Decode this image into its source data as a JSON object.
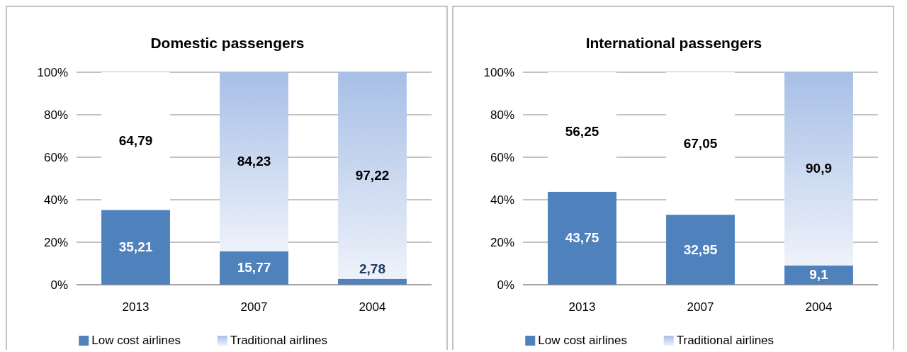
{
  "chart_data": [
    {
      "type": "bar",
      "stacked": true,
      "title": "Domestic passengers",
      "categories": [
        "2013",
        "2007",
        "2004"
      ],
      "series": [
        {
          "name": "Low cost airlines",
          "color": "#4f81bd",
          "values": [
            35.21,
            15.77,
            2.78
          ],
          "value_labels": [
            "35,21",
            "15,77",
            "2,78"
          ]
        },
        {
          "name": "Traditional airlines",
          "color": "#a7bfe6",
          "colors": [
            "#ffffff",
            "#a7bfe6",
            "#a7bfe6"
          ],
          "values": [
            64.79,
            84.23,
            97.22
          ],
          "value_labels": [
            "64,79",
            "84,23",
            "97,22"
          ]
        }
      ],
      "ylim": [
        0,
        100
      ],
      "yticks": [
        {
          "value": 0,
          "label": "0%"
        },
        {
          "value": 20,
          "label": "20%"
        },
        {
          "value": 40,
          "label": "40%"
        },
        {
          "value": 60,
          "label": "60%"
        },
        {
          "value": 80,
          "label": "80%"
        },
        {
          "value": 100,
          "label": "100%"
        }
      ],
      "grid": "y",
      "legend": "bottom"
    },
    {
      "type": "bar",
      "stacked": true,
      "title": "International passengers",
      "categories": [
        "2013",
        "2007",
        "2004"
      ],
      "series": [
        {
          "name": "Low cost airlines",
          "color": "#4f81bd",
          "values": [
            43.75,
            32.95,
            9.1
          ],
          "value_labels": [
            "43,75",
            "32,95",
            "9,1"
          ]
        },
        {
          "name": "Traditional airlines",
          "color": "#a7bfe6",
          "colors": [
            "#ffffff",
            "#ffffff",
            "#a7bfe6"
          ],
          "values": [
            56.25,
            67.05,
            90.9
          ],
          "value_labels": [
            "56,25",
            "67,05",
            "90,9"
          ]
        }
      ],
      "ylim": [
        0,
        100
      ],
      "yticks": [
        {
          "value": 0,
          "label": "0%"
        },
        {
          "value": 20,
          "label": "20%"
        },
        {
          "value": 40,
          "label": "40%"
        },
        {
          "value": 60,
          "label": "60%"
        },
        {
          "value": 80,
          "label": "80%"
        },
        {
          "value": 100,
          "label": "100%"
        }
      ],
      "grid": "y",
      "legend": "bottom"
    }
  ]
}
